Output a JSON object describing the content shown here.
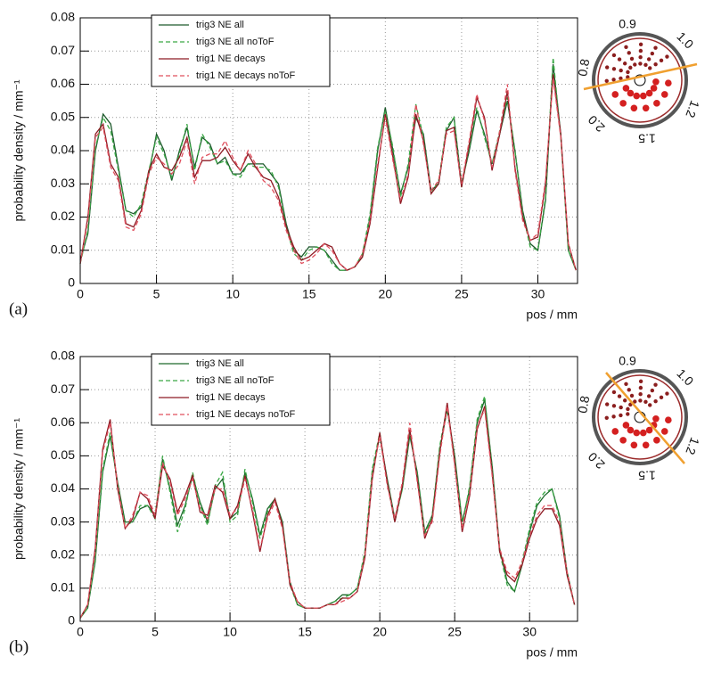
{
  "chart_data": [
    {
      "type": "line",
      "panel_label": "(a)",
      "xlabel": "pos / mm",
      "ylabel": "probability density / mm⁻¹",
      "xlim": [
        0,
        32.6
      ],
      "ylim": [
        0,
        0.08
      ],
      "xticks": [
        0,
        5,
        10,
        15,
        20,
        25,
        30
      ],
      "yticks": [
        0,
        0.01,
        0.02,
        0.03,
        0.04,
        0.05,
        0.06,
        0.07,
        0.08
      ],
      "grid": true,
      "inset_labels": [
        "0.9",
        "1.0",
        "0.8",
        "1.2",
        "1.5",
        "2.0"
      ],
      "x": [
        0,
        0.5,
        1,
        1.5,
        2,
        2.5,
        3,
        3.5,
        4,
        4.5,
        5,
        5.5,
        6,
        6.5,
        7,
        7.5,
        8,
        8.5,
        9,
        9.5,
        10,
        10.5,
        11,
        11.5,
        12,
        12.5,
        13,
        13.5,
        14,
        14.5,
        15,
        15.5,
        16,
        16.5,
        17,
        17.5,
        18,
        18.5,
        19,
        19.5,
        20,
        20.5,
        21,
        21.5,
        22,
        22.5,
        23,
        23.5,
        24,
        24.5,
        25,
        25.5,
        26,
        26.5,
        27,
        27.5,
        28,
        28.5,
        29,
        29.5,
        30,
        30.5,
        31,
        31.5,
        32,
        32.5
      ],
      "series": [
        {
          "name": "trig3 NE all",
          "color": "#1d5a2c",
          "linestyle": "solid",
          "values": [
            0.007,
            0.015,
            0.04,
            0.051,
            0.048,
            0.035,
            0.022,
            0.021,
            0.023,
            0.033,
            0.045,
            0.04,
            0.031,
            0.04,
            0.047,
            0.035,
            0.044,
            0.042,
            0.036,
            0.038,
            0.033,
            0.033,
            0.036,
            0.036,
            0.036,
            0.033,
            0.03,
            0.018,
            0.01,
            0.008,
            0.011,
            0.011,
            0.01,
            0.007,
            0.004,
            0.004,
            0.005,
            0.008,
            0.02,
            0.04,
            0.053,
            0.04,
            0.027,
            0.035,
            0.05,
            0.045,
            0.028,
            0.03,
            0.046,
            0.05,
            0.03,
            0.04,
            0.052,
            0.045,
            0.036,
            0.045,
            0.055,
            0.04,
            0.022,
            0.012,
            0.01,
            0.025,
            0.066,
            0.045,
            0.01,
            0.004
          ]
        },
        {
          "name": "trig3 NE all noToF",
          "color": "#3aa845",
          "linestyle": "dashed",
          "values": [
            0.006,
            0.016,
            0.041,
            0.05,
            0.046,
            0.034,
            0.022,
            0.02,
            0.024,
            0.034,
            0.044,
            0.039,
            0.032,
            0.039,
            0.048,
            0.034,
            0.045,
            0.041,
            0.036,
            0.037,
            0.033,
            0.032,
            0.036,
            0.035,
            0.035,
            0.034,
            0.029,
            0.017,
            0.009,
            0.007,
            0.01,
            0.011,
            0.01,
            0.006,
            0.004,
            0.004,
            0.005,
            0.009,
            0.021,
            0.041,
            0.052,
            0.041,
            0.026,
            0.036,
            0.054,
            0.044,
            0.027,
            0.031,
            0.047,
            0.05,
            0.029,
            0.041,
            0.053,
            0.044,
            0.036,
            0.046,
            0.056,
            0.04,
            0.021,
            0.011,
            0.01,
            0.026,
            0.068,
            0.044,
            0.01,
            0.004
          ]
        },
        {
          "name": "trig1 NE decays",
          "color": "#8e1b24",
          "linestyle": "solid",
          "values": [
            0.006,
            0.02,
            0.045,
            0.048,
            0.036,
            0.032,
            0.018,
            0.017,
            0.022,
            0.034,
            0.039,
            0.035,
            0.034,
            0.038,
            0.044,
            0.032,
            0.037,
            0.037,
            0.038,
            0.041,
            0.037,
            0.034,
            0.039,
            0.035,
            0.032,
            0.031,
            0.026,
            0.017,
            0.011,
            0.007,
            0.008,
            0.01,
            0.012,
            0.011,
            0.006,
            0.004,
            0.005,
            0.008,
            0.018,
            0.035,
            0.051,
            0.038,
            0.024,
            0.032,
            0.051,
            0.043,
            0.027,
            0.03,
            0.046,
            0.047,
            0.029,
            0.042,
            0.056,
            0.05,
            0.034,
            0.045,
            0.058,
            0.035,
            0.02,
            0.013,
            0.014,
            0.03,
            0.063,
            0.045,
            0.012,
            0.004
          ]
        },
        {
          "name": "trig1 NE decays noToF",
          "color": "#e0505e",
          "linestyle": "dashed",
          "values": [
            0.006,
            0.019,
            0.044,
            0.047,
            0.035,
            0.031,
            0.017,
            0.016,
            0.021,
            0.033,
            0.038,
            0.036,
            0.033,
            0.036,
            0.043,
            0.03,
            0.038,
            0.039,
            0.039,
            0.043,
            0.038,
            0.034,
            0.04,
            0.036,
            0.031,
            0.029,
            0.025,
            0.016,
            0.01,
            0.006,
            0.007,
            0.009,
            0.012,
            0.01,
            0.006,
            0.004,
            0.005,
            0.009,
            0.019,
            0.036,
            0.05,
            0.037,
            0.025,
            0.033,
            0.054,
            0.042,
            0.028,
            0.031,
            0.045,
            0.046,
            0.03,
            0.043,
            0.057,
            0.049,
            0.035,
            0.046,
            0.06,
            0.034,
            0.019,
            0.013,
            0.015,
            0.031,
            0.062,
            0.044,
            0.012,
            0.004
          ]
        }
      ]
    },
    {
      "type": "line",
      "panel_label": "(b)",
      "xlabel": "pos / mm",
      "ylabel": "probability density / mm⁻¹",
      "xlim": [
        0,
        33.2
      ],
      "ylim": [
        0,
        0.08
      ],
      "xticks": [
        0,
        5,
        10,
        15,
        20,
        25,
        30
      ],
      "yticks": [
        0,
        0.01,
        0.02,
        0.03,
        0.04,
        0.05,
        0.06,
        0.07,
        0.08
      ],
      "grid": true,
      "inset_labels": [
        "0.9",
        "1.0",
        "0.8",
        "1.2",
        "1.5",
        "2.0"
      ],
      "x": [
        0,
        0.5,
        1,
        1.5,
        2,
        2.5,
        3,
        3.5,
        4,
        4.5,
        5,
        5.5,
        6,
        6.5,
        7,
        7.5,
        8,
        8.5,
        9,
        9.5,
        10,
        10.5,
        11,
        11.5,
        12,
        12.5,
        13,
        13.5,
        14,
        14.5,
        15,
        15.5,
        16,
        16.5,
        17,
        17.5,
        18,
        18.5,
        19,
        19.5,
        20,
        20.5,
        21,
        21.5,
        22,
        22.5,
        23,
        23.5,
        24,
        24.5,
        25,
        25.5,
        26,
        26.5,
        27,
        27.5,
        28,
        28.5,
        29,
        29.5,
        30,
        30.5,
        31,
        31.5,
        32,
        32.5,
        33
      ],
      "series": [
        {
          "name": "trig3 NE all",
          "color": "#1d6a2c",
          "linestyle": "solid",
          "values": [
            0.001,
            0.004,
            0.018,
            0.045,
            0.056,
            0.042,
            0.03,
            0.03,
            0.034,
            0.035,
            0.032,
            0.049,
            0.04,
            0.029,
            0.035,
            0.044,
            0.036,
            0.03,
            0.04,
            0.043,
            0.031,
            0.033,
            0.045,
            0.037,
            0.026,
            0.034,
            0.037,
            0.03,
            0.012,
            0.005,
            0.004,
            0.004,
            0.004,
            0.005,
            0.006,
            0.008,
            0.008,
            0.01,
            0.02,
            0.045,
            0.056,
            0.043,
            0.031,
            0.04,
            0.056,
            0.045,
            0.027,
            0.032,
            0.052,
            0.064,
            0.05,
            0.03,
            0.04,
            0.06,
            0.067,
            0.047,
            0.022,
            0.012,
            0.009,
            0.017,
            0.027,
            0.035,
            0.038,
            0.04,
            0.032,
            0.015,
            0.005
          ]
        },
        {
          "name": "trig3 NE all noToF",
          "color": "#3aa845",
          "linestyle": "dashed",
          "values": [
            0.001,
            0.004,
            0.019,
            0.046,
            0.057,
            0.041,
            0.029,
            0.03,
            0.035,
            0.035,
            0.031,
            0.05,
            0.039,
            0.027,
            0.034,
            0.045,
            0.035,
            0.029,
            0.041,
            0.045,
            0.03,
            0.032,
            0.046,
            0.036,
            0.025,
            0.033,
            0.037,
            0.029,
            0.011,
            0.005,
            0.004,
            0.004,
            0.004,
            0.005,
            0.006,
            0.007,
            0.008,
            0.01,
            0.021,
            0.046,
            0.057,
            0.042,
            0.03,
            0.04,
            0.057,
            0.044,
            0.026,
            0.032,
            0.053,
            0.065,
            0.049,
            0.029,
            0.041,
            0.061,
            0.068,
            0.046,
            0.021,
            0.011,
            0.009,
            0.018,
            0.028,
            0.036,
            0.039,
            0.04,
            0.031,
            0.014,
            0.005
          ]
        },
        {
          "name": "trig1 NE decays",
          "color": "#8e1b24",
          "linestyle": "solid",
          "values": [
            0.001,
            0.005,
            0.022,
            0.052,
            0.061,
            0.04,
            0.028,
            0.031,
            0.039,
            0.037,
            0.031,
            0.047,
            0.043,
            0.033,
            0.038,
            0.044,
            0.033,
            0.032,
            0.041,
            0.039,
            0.031,
            0.035,
            0.044,
            0.033,
            0.021,
            0.032,
            0.037,
            0.029,
            0.011,
            0.006,
            0.004,
            0.004,
            0.004,
            0.005,
            0.005,
            0.007,
            0.007,
            0.009,
            0.019,
            0.043,
            0.057,
            0.042,
            0.03,
            0.041,
            0.058,
            0.043,
            0.025,
            0.031,
            0.051,
            0.066,
            0.048,
            0.027,
            0.038,
            0.058,
            0.065,
            0.045,
            0.021,
            0.014,
            0.012,
            0.017,
            0.025,
            0.031,
            0.034,
            0.034,
            0.029,
            0.014,
            0.005
          ]
        },
        {
          "name": "trig1 NE decays noToF",
          "color": "#e0505e",
          "linestyle": "dashed",
          "values": [
            0.001,
            0.005,
            0.021,
            0.051,
            0.06,
            0.041,
            0.028,
            0.032,
            0.039,
            0.038,
            0.032,
            0.048,
            0.042,
            0.032,
            0.037,
            0.043,
            0.034,
            0.031,
            0.04,
            0.04,
            0.032,
            0.034,
            0.043,
            0.034,
            0.022,
            0.031,
            0.036,
            0.028,
            0.012,
            0.006,
            0.004,
            0.004,
            0.004,
            0.005,
            0.005,
            0.006,
            0.007,
            0.009,
            0.02,
            0.044,
            0.056,
            0.041,
            0.031,
            0.042,
            0.06,
            0.042,
            0.026,
            0.03,
            0.05,
            0.065,
            0.047,
            0.028,
            0.039,
            0.059,
            0.064,
            0.044,
            0.022,
            0.015,
            0.013,
            0.018,
            0.026,
            0.032,
            0.035,
            0.035,
            0.03,
            0.015,
            0.005
          ]
        }
      ]
    }
  ]
}
